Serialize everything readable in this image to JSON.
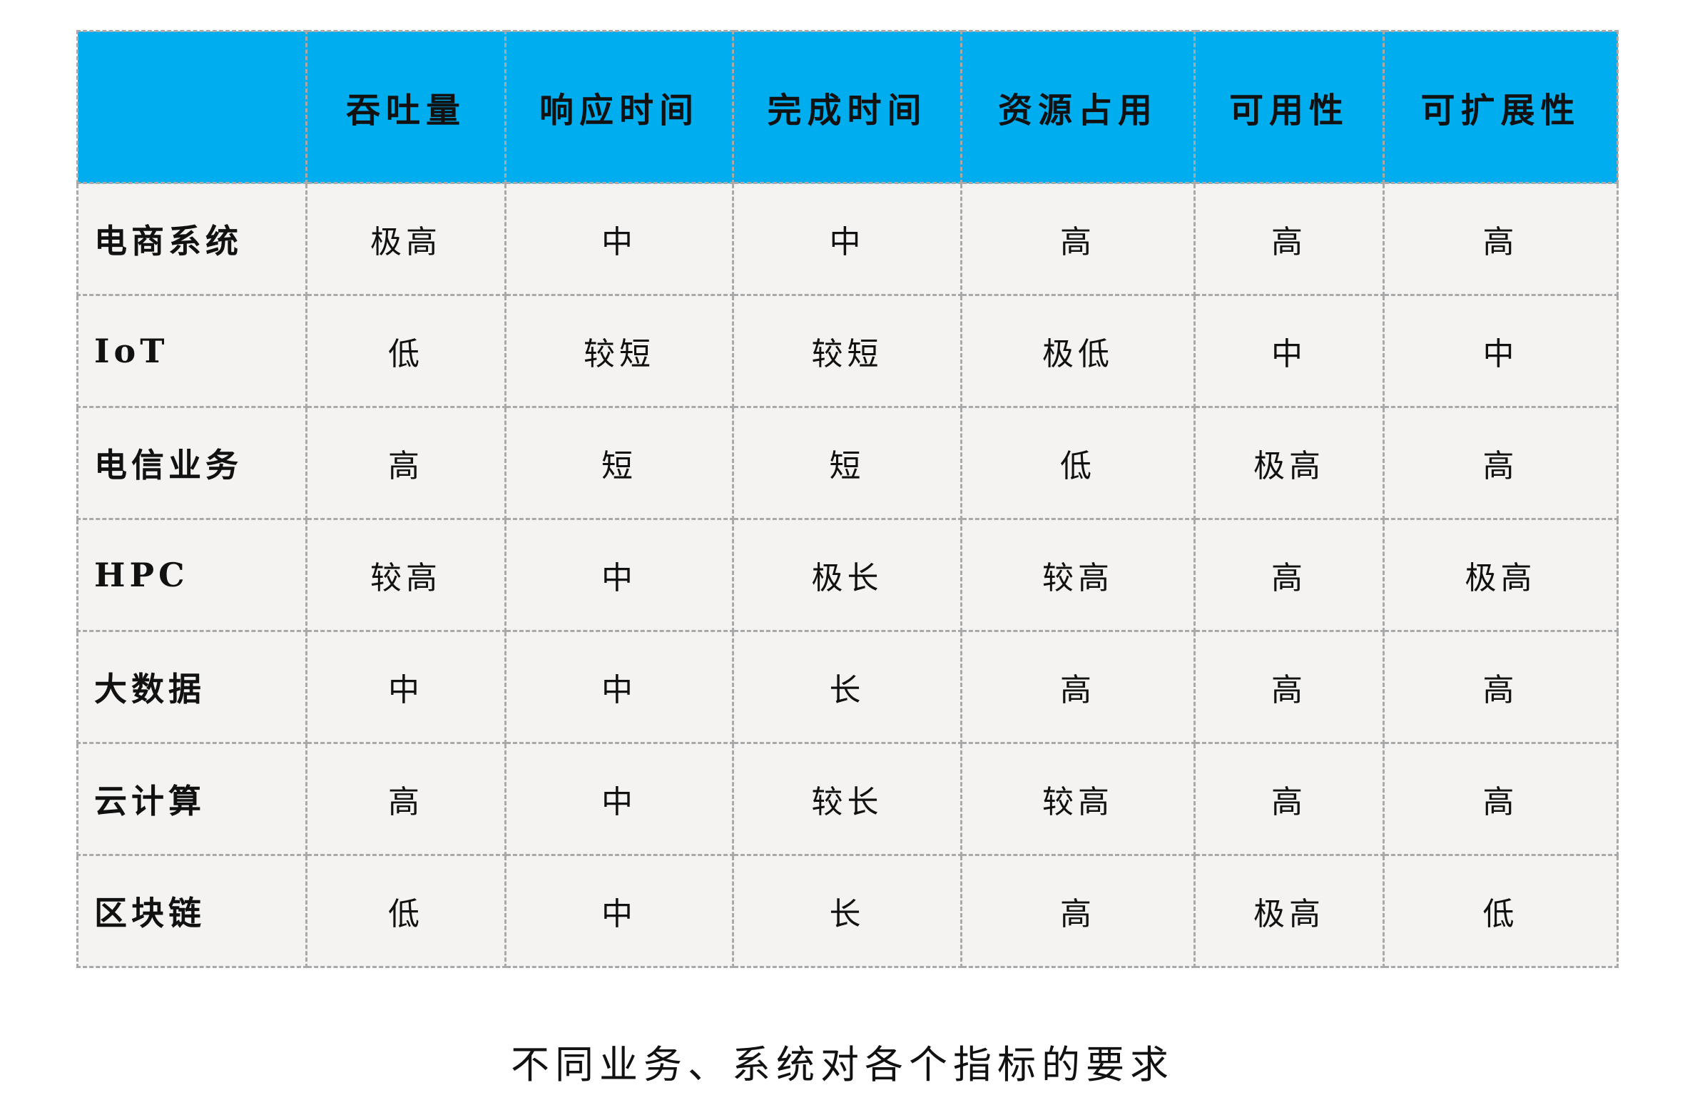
{
  "table": {
    "header_color": "#00adef",
    "columns": [
      "",
      "吞吐量",
      "响应时间",
      "完成时间",
      "资源占用",
      "可用性",
      "可扩展性"
    ],
    "rows": [
      [
        "电商系统",
        "极高",
        "中",
        "中",
        "高",
        "高",
        "高"
      ],
      [
        "IoT",
        "低",
        "较短",
        "较短",
        "极低",
        "中",
        "中"
      ],
      [
        "电信业务",
        "高",
        "短",
        "短",
        "低",
        "极高",
        "高"
      ],
      [
        "HPC",
        "较高",
        "中",
        "极长",
        "较高",
        "高",
        "极高"
      ],
      [
        "大数据",
        "中",
        "中",
        "长",
        "高",
        "高",
        "高"
      ],
      [
        "云计算",
        "高",
        "中",
        "较长",
        "较高",
        "高",
        "高"
      ],
      [
        "区块链",
        "低",
        "中",
        "长",
        "高",
        "极高",
        "低"
      ]
    ]
  },
  "caption": "不同业务、系统对各个指标的要求"
}
